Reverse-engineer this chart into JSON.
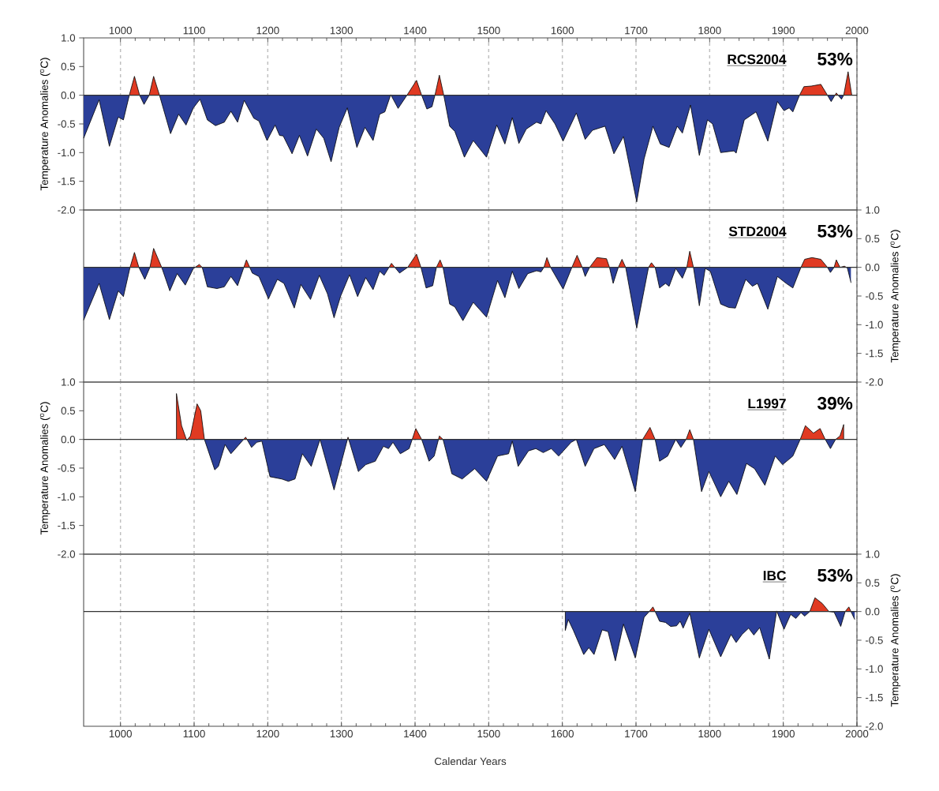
{
  "chart_data": [
    {
      "type": "area",
      "title": "RCS2004",
      "annotations": [
        "53%"
      ],
      "ylabel": "Temperature Anomalies ($^{o}$C)",
      "colors": [
        "#e03a22",
        "#2b3f99"
      ],
      "grid": "x",
      "xlim": [
        950,
        2000
      ],
      "xticks": [
        1000,
        1100,
        1200,
        1300,
        1400,
        1500,
        1600,
        1700,
        1800,
        1900,
        2000
      ],
      "ylim": [
        -2,
        1
      ],
      "yticks": [
        {
          "value": 1,
          "label": "1.0"
        },
        {
          "value": 0.5,
          "label": "0.5"
        },
        {
          "value": 0,
          "label": "0.0"
        },
        {
          "value": -0.5,
          "label": "-0.5"
        },
        {
          "value": -1,
          "label": "-1.0"
        },
        {
          "value": -1.5,
          "label": "-1.5"
        },
        {
          "value": -2,
          "label": "-2.0"
        }
      ],
      "ref_lines": [
        {
          "axis": "y",
          "value": 0
        }
      ],
      "x": [
        950,
        971,
        985,
        997,
        1004,
        1012,
        1019,
        1026,
        1032,
        1039,
        1045,
        1053,
        1068,
        1079,
        1089,
        1099,
        1108,
        1118,
        1129,
        1141,
        1150,
        1159,
        1168,
        1181,
        1188,
        1199,
        1210,
        1216,
        1221,
        1233,
        1243,
        1254,
        1266,
        1276,
        1286,
        1297,
        1308,
        1321,
        1332,
        1343,
        1352,
        1359,
        1367,
        1377,
        1389,
        1402,
        1409,
        1416,
        1423,
        1427,
        1433,
        1439,
        1447,
        1454,
        1467,
        1479,
        1497,
        1511,
        1522,
        1532,
        1541,
        1551,
        1565,
        1571,
        1578,
        1590,
        1601,
        1619,
        1631,
        1641,
        1658,
        1670,
        1683,
        1701,
        1711,
        1723,
        1733,
        1745,
        1756,
        1763,
        1774,
        1786,
        1797,
        1804,
        1815,
        1833,
        1836,
        1847,
        1863,
        1879,
        1892,
        1901,
        1908,
        1913,
        1922,
        1928,
        1938,
        1951,
        1960,
        1965,
        1972,
        1979,
        1982,
        1988,
        1993
      ],
      "series": [
        {
          "values": [
            -0.75,
            -0.08,
            -0.89,
            -0.38,
            -0.43,
            0,
            0.33,
            0,
            -0.16,
            0,
            0.33,
            0,
            -0.67,
            -0.33,
            -0.52,
            -0.22,
            -0.07,
            -0.43,
            -0.53,
            -0.47,
            -0.28,
            -0.47,
            -0.09,
            -0.4,
            -0.45,
            -0.79,
            -0.52,
            -0.7,
            -0.71,
            -1.02,
            -0.7,
            -1.06,
            -0.59,
            -0.75,
            -1.16,
            -0.56,
            -0.22,
            -0.91,
            -0.56,
            -0.79,
            -0.33,
            -0.29,
            0.01,
            -0.23,
            0,
            0.26,
            0,
            -0.24,
            -0.2,
            0,
            0.35,
            0,
            -0.54,
            -0.63,
            -1.08,
            -0.79,
            -1.08,
            -0.52,
            -0.85,
            -0.39,
            -0.84,
            -0.59,
            -0.47,
            -0.5,
            -0.27,
            -0.5,
            -0.8,
            -0.31,
            -0.77,
            -0.61,
            -0.54,
            -1.02,
            -0.72,
            -1.86,
            -1.11,
            -0.54,
            -0.85,
            -0.91,
            -0.54,
            -0.66,
            -0.17,
            -1.05,
            -0.43,
            -0.5,
            -1.0,
            -0.97,
            -1.01,
            -0.43,
            -0.29,
            -0.8,
            -0.11,
            -0.27,
            -0.22,
            -0.29,
            0,
            0.15,
            0.16,
            0.19,
            0,
            -0.11,
            0.04,
            -0.07,
            0,
            0.41,
            0
          ]
        }
      ]
    },
    {
      "type": "area",
      "title": "STD2004",
      "annotations": [
        "53%"
      ],
      "ylabel": "Temperature Anomalies ($^{o}$C)",
      "colors": [
        "#e03a22",
        "#2b3f99"
      ],
      "grid": "x",
      "tick_labels": "y",
      "xlim": [
        950,
        2000
      ],
      "xticks": [
        1000,
        1100,
        1200,
        1300,
        1400,
        1500,
        1600,
        1700,
        1800,
        1900,
        2000
      ],
      "ylim": [
        -2,
        1
      ],
      "yticks": [
        {
          "value": 1,
          "label": "1.0"
        },
        {
          "value": 0.5,
          "label": "0.5"
        },
        {
          "value": 0,
          "label": "0.0"
        },
        {
          "value": -0.5,
          "label": "-0.5"
        },
        {
          "value": -1,
          "label": "-1.0"
        },
        {
          "value": -1.5,
          "label": "-1.5"
        },
        {
          "value": -2,
          "label": "-2.0"
        }
      ],
      "ref_lines": [
        {
          "axis": "y",
          "value": 0
        }
      ],
      "x": [
        950,
        971,
        985,
        997,
        1004,
        1013,
        1019,
        1025,
        1033,
        1040,
        1045,
        1056,
        1067,
        1077,
        1088,
        1099,
        1107,
        1111,
        1118,
        1131,
        1141,
        1150,
        1159,
        1171,
        1179,
        1188,
        1201,
        1213,
        1222,
        1236,
        1245,
        1258,
        1270,
        1281,
        1290,
        1299,
        1311,
        1322,
        1333,
        1343,
        1352,
        1358,
        1368,
        1379,
        1390,
        1402,
        1408,
        1415,
        1424,
        1429,
        1434,
        1438,
        1447,
        1454,
        1465,
        1479,
        1497,
        1512,
        1522,
        1532,
        1541,
        1553,
        1565,
        1571,
        1575,
        1579,
        1584,
        1601,
        1613,
        1620,
        1627,
        1631,
        1637,
        1647,
        1660,
        1664,
        1669,
        1676,
        1681,
        1686,
        1701,
        1717,
        1721,
        1726,
        1732,
        1740,
        1745,
        1754,
        1763,
        1769,
        1773,
        1778,
        1786,
        1794,
        1801,
        1815,
        1826,
        1835,
        1849,
        1858,
        1865,
        1879,
        1892,
        1904,
        1913,
        1924,
        1929,
        1939,
        1951,
        1960,
        1964,
        1969,
        1972,
        1977,
        1983,
        1987,
        1992
      ],
      "series": [
        {
          "values": [
            -0.92,
            -0.28,
            -0.91,
            -0.41,
            -0.51,
            0,
            0.26,
            0,
            -0.21,
            0,
            0.33,
            0,
            -0.41,
            -0.11,
            -0.31,
            -0.02,
            0.05,
            0,
            -0.34,
            -0.37,
            -0.34,
            -0.16,
            -0.32,
            0.13,
            -0.1,
            -0.16,
            -0.55,
            -0.21,
            -0.28,
            -0.71,
            -0.3,
            -0.56,
            -0.14,
            -0.46,
            -0.88,
            -0.5,
            -0.13,
            -0.51,
            -0.18,
            -0.39,
            -0.07,
            -0.14,
            0.07,
            -0.1,
            0,
            0.23,
            0,
            -0.36,
            -0.32,
            0,
            0.13,
            0,
            -0.64,
            -0.69,
            -0.93,
            -0.61,
            -0.87,
            -0.23,
            -0.53,
            -0.07,
            -0.37,
            -0.11,
            -0.06,
            -0.08,
            0,
            0.17,
            0,
            -0.38,
            0,
            0.21,
            0,
            -0.16,
            0,
            0.17,
            0.15,
            0,
            -0.28,
            0,
            0.14,
            0,
            -1.06,
            0,
            0.08,
            0,
            -0.36,
            -0.28,
            -0.33,
            -0.02,
            -0.19,
            0,
            0.28,
            0,
            -0.67,
            -0.02,
            -0.07,
            -0.64,
            -0.7,
            -0.71,
            -0.21,
            -0.33,
            -0.28,
            -0.73,
            -0.16,
            -0.28,
            -0.36,
            0,
            0.14,
            0.17,
            0.14,
            0,
            -0.09,
            0,
            0.13,
            0,
            0.02,
            -0.01,
            -0.27
          ]
        }
      ]
    },
    {
      "type": "area",
      "title": "L1997",
      "annotations": [
        "39%"
      ],
      "ylabel": "Temperature Anomalies ($^{o}$C)",
      "colors": [
        "#e03a22",
        "#2b3f99"
      ],
      "grid": "x",
      "tick_labels": "y",
      "xlim": [
        950,
        2000
      ],
      "xticks": [
        1000,
        1100,
        1200,
        1300,
        1400,
        1500,
        1600,
        1700,
        1800,
        1900,
        2000
      ],
      "ylim": [
        -2,
        1
      ],
      "yticks": [
        {
          "value": 1,
          "label": "1.0"
        },
        {
          "value": 0.5,
          "label": "0.5"
        },
        {
          "value": 0,
          "label": "0.0"
        },
        {
          "value": -0.5,
          "label": "-0.5"
        },
        {
          "value": -1,
          "label": "-1.0"
        },
        {
          "value": -1.5,
          "label": "-1.5"
        },
        {
          "value": -2,
          "label": "-2.0"
        }
      ],
      "ref_lines": [
        {
          "axis": "y",
          "value": 0
        }
      ],
      "x": [
        1076,
        1076,
        1083,
        1090,
        1095,
        1104,
        1109,
        1114,
        1128,
        1133,
        1142,
        1150,
        1161,
        1170,
        1178,
        1185,
        1192,
        1203,
        1219,
        1228,
        1237,
        1247,
        1259,
        1271,
        1290,
        1309,
        1323,
        1333,
        1346,
        1357,
        1364,
        1370,
        1380,
        1392,
        1401,
        1409,
        1419,
        1426,
        1433,
        1438,
        1450,
        1464,
        1481,
        1497,
        1512,
        1527,
        1532,
        1540,
        1554,
        1564,
        1574,
        1585,
        1595,
        1612,
        1619,
        1631,
        1643,
        1657,
        1671,
        1681,
        1699,
        1709,
        1719,
        1726,
        1732,
        1743,
        1754,
        1761,
        1768,
        1773,
        1778,
        1789,
        1799,
        1815,
        1826,
        1837,
        1850,
        1861,
        1875,
        1889,
        1899,
        1913,
        1923,
        1930,
        1941,
        1950,
        1957,
        1964,
        1971,
        1977,
        1982,
        1982
      ],
      "series": [
        {
          "values": [
            0,
            0.8,
            0.24,
            -0.02,
            0.06,
            0.62,
            0.5,
            0,
            -0.53,
            -0.47,
            -0.09,
            -0.25,
            -0.09,
            0.04,
            -0.14,
            -0.05,
            -0.03,
            -0.65,
            -0.69,
            -0.73,
            -0.69,
            -0.25,
            -0.47,
            0,
            -0.88,
            0.04,
            -0.56,
            -0.44,
            -0.38,
            -0.12,
            -0.16,
            -0.05,
            -0.25,
            -0.16,
            0.19,
            0,
            -0.38,
            -0.29,
            0.06,
            0,
            -0.6,
            -0.69,
            -0.51,
            -0.73,
            -0.29,
            -0.25,
            -0.03,
            -0.47,
            -0.2,
            -0.16,
            -0.23,
            -0.16,
            -0.29,
            -0.05,
            0,
            -0.47,
            -0.16,
            -0.09,
            -0.35,
            -0.12,
            -0.91,
            0,
            0.21,
            0,
            -0.38,
            -0.29,
            0,
            -0.14,
            0,
            0.17,
            0,
            -0.91,
            -0.56,
            -1.0,
            -0.73,
            -0.96,
            -0.42,
            -0.51,
            -0.8,
            -0.29,
            -0.44,
            -0.29,
            0,
            0.24,
            0.11,
            0.19,
            0,
            -0.16,
            0,
            0.06,
            0.26,
            0
          ]
        }
      ]
    },
    {
      "type": "area",
      "title": "IBC",
      "annotations": [
        "53%"
      ],
      "ylabel": "Temperature Anomalies ($^{o}$C)",
      "xlabel": "Calendar Years",
      "colors": [
        "#e03a22",
        "#2b3f99"
      ],
      "grid": "x",
      "xlim": [
        950,
        2000
      ],
      "xticks": [
        1000,
        1100,
        1200,
        1300,
        1400,
        1500,
        1600,
        1700,
        1800,
        1900,
        2000
      ],
      "ylim": [
        -2,
        1
      ],
      "yticks": [
        {
          "value": 1,
          "label": "1.0"
        },
        {
          "value": 0.5,
          "label": "0.5"
        },
        {
          "value": 0,
          "label": "0.0"
        },
        {
          "value": -0.5,
          "label": "-0.5"
        },
        {
          "value": -1,
          "label": "-1.0"
        },
        {
          "value": -1.5,
          "label": "-1.5"
        },
        {
          "value": -2,
          "label": "-2.0"
        }
      ],
      "ref_lines": [
        {
          "axis": "y",
          "value": 0
        }
      ],
      "x": [
        1604,
        1604,
        1608,
        1615,
        1629,
        1636,
        1643,
        1654,
        1662,
        1672,
        1683,
        1699,
        1711,
        1718,
        1723,
        1726,
        1732,
        1740,
        1747,
        1755,
        1760,
        1764,
        1773,
        1786,
        1799,
        1815,
        1829,
        1836,
        1844,
        1853,
        1860,
        1868,
        1881,
        1891,
        1901,
        1910,
        1917,
        1924,
        1929,
        1936,
        1943,
        1953,
        1962,
        1969,
        1978,
        1984,
        1989,
        1997
      ],
      "series": [
        {
          "values": [
            0,
            -0.33,
            -0.14,
            -0.33,
            -0.75,
            -0.63,
            -0.75,
            -0.32,
            -0.35,
            -0.86,
            -0.22,
            -0.81,
            -0.1,
            0,
            0.08,
            0,
            -0.17,
            -0.19,
            -0.26,
            -0.25,
            -0.17,
            -0.29,
            -0.03,
            -0.81,
            -0.31,
            -0.79,
            -0.4,
            -0.54,
            -0.4,
            -0.29,
            -0.41,
            -0.28,
            -0.83,
            0.01,
            -0.31,
            -0.05,
            -0.12,
            -0.02,
            -0.08,
            0,
            0.24,
            0.14,
            0,
            -0.01,
            -0.26,
            0,
            0.08,
            -0.14
          ]
        }
      ]
    }
  ]
}
